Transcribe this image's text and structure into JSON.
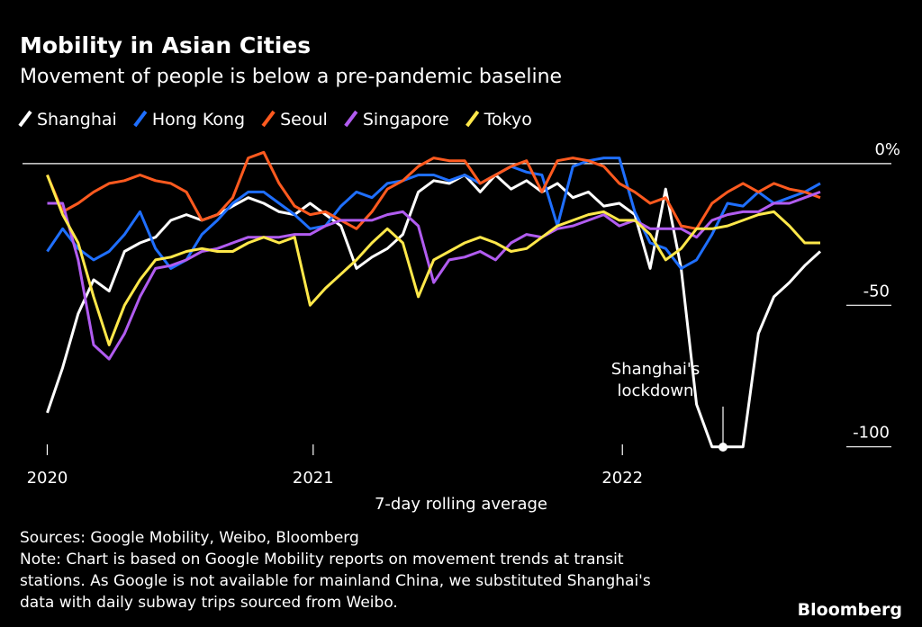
{
  "chart_data": {
    "type": "line",
    "title": "Mobility in Asian Cities",
    "subtitle": "Movement of people is below a pre-pandemic baseline",
    "x_label": "7-day rolling average",
    "annotation": [
      "Shanghai's",
      "lockdown"
    ],
    "source": "Sources: Google Mobility, Weibo, Bloomberg",
    "note": [
      "Note: Chart is based on Google Mobility reports on movement trends at transit",
      "stations. As Google is not available for mainland China, we substituted Shanghai's",
      "data with daily subway trips sourced from Weibo."
    ],
    "brand": "Bloomberg",
    "xlim": [
      2020.06,
      2022.87
    ],
    "xticks": [
      {
        "value": 2020.14,
        "label": "2020"
      },
      2021,
      2022
    ],
    "ylim": [
      -102,
      6
    ],
    "yticks": [
      {
        "value": 0,
        "label": "0%"
      },
      -50,
      -100
    ],
    "zero_line": true,
    "x": [
      2020.14,
      2020.19,
      2020.24,
      2020.29,
      2020.34,
      2020.39,
      2020.44,
      2020.49,
      2020.54,
      2020.59,
      2020.64,
      2020.69,
      2020.74,
      2020.79,
      2020.84,
      2020.89,
      2020.94,
      2020.99,
      2021.04,
      2021.09,
      2021.14,
      2021.19,
      2021.24,
      2021.29,
      2021.34,
      2021.39,
      2021.44,
      2021.49,
      2021.54,
      2021.59,
      2021.64,
      2021.69,
      2021.74,
      2021.79,
      2021.84,
      2021.89,
      2021.94,
      2021.99,
      2022.04,
      2022.09,
      2022.14,
      2022.19,
      2022.24,
      2022.29,
      2022.34,
      2022.39,
      2022.44,
      2022.49,
      2022.54,
      2022.59,
      2022.64
    ],
    "series": [
      {
        "name": "Shanghai",
        "color": "#ffffff",
        "values": [
          -88,
          -72,
          -53,
          -41,
          -45,
          -31,
          -28,
          -26,
          -20,
          -18,
          -20,
          -18,
          -15,
          -12,
          -14,
          -17,
          -18,
          -14,
          -18,
          -22,
          -37,
          -33,
          -30,
          -25,
          -10,
          -6,
          -7,
          -4,
          -10,
          -4,
          -9,
          -6,
          -10,
          -7,
          -12,
          -10,
          -15,
          -14,
          -18,
          -37,
          -9,
          -37,
          -85,
          -100,
          -100,
          -100,
          -60,
          -47,
          -42,
          -36,
          -31
        ]
      },
      {
        "name": "Hong Kong",
        "color": "#1f6fff",
        "values": [
          -31,
          -23,
          -30,
          -34,
          -31,
          -25,
          -17,
          -30,
          -37,
          -34,
          -25,
          -20,
          -14,
          -10,
          -10,
          -14,
          -18,
          -23,
          -22,
          -15,
          -10,
          -12,
          -7,
          -6,
          -4,
          -4,
          -6,
          -4,
          -7,
          -4,
          -1,
          -3,
          -4,
          -22,
          -1,
          1,
          2,
          2,
          -17,
          -28,
          -30,
          -37,
          -34,
          -25,
          -14,
          -15,
          -10,
          -14,
          -12,
          -10,
          -7
        ]
      },
      {
        "name": "Seoul",
        "color": "#ff5a1f",
        "values": [
          -4,
          -17,
          -14,
          -10,
          -7,
          -6,
          -4,
          -6,
          -7,
          -10,
          -20,
          -18,
          -12,
          2,
          4,
          -7,
          -15,
          -18,
          -17,
          -20,
          -23,
          -17,
          -9,
          -6,
          -1,
          2,
          1,
          1,
          -7,
          -4,
          -1,
          1,
          -10,
          1,
          2,
          1,
          -1,
          -7,
          -10,
          -14,
          -12,
          -22,
          -23,
          -14,
          -10,
          -7,
          -10,
          -7,
          -9,
          -10,
          -12
        ]
      },
      {
        "name": "Singapore",
        "color": "#b15cf0",
        "values": [
          -14,
          -14,
          -34,
          -64,
          -69,
          -60,
          -47,
          -37,
          -36,
          -34,
          -31,
          -30,
          -28,
          -26,
          -26,
          -26,
          -25,
          -25,
          -22,
          -20,
          -20,
          -20,
          -18,
          -17,
          -22,
          -42,
          -34,
          -33,
          -31,
          -34,
          -28,
          -25,
          -26,
          -23,
          -22,
          -20,
          -18,
          -22,
          -20,
          -23,
          -23,
          -23,
          -26,
          -20,
          -18,
          -17,
          -17,
          -14,
          -14,
          -12,
          -10
        ]
      },
      {
        "name": "Tokyo",
        "color": "#ffe84a",
        "values": [
          -4,
          -18,
          -28,
          -47,
          -64,
          -50,
          -41,
          -34,
          -33,
          -31,
          -30,
          -31,
          -31,
          -28,
          -26,
          -28,
          -26,
          -50,
          -44,
          -39,
          -34,
          -28,
          -23,
          -28,
          -47,
          -34,
          -31,
          -28,
          -26,
          -28,
          -31,
          -30,
          -26,
          -22,
          -20,
          -18,
          -17,
          -20,
          -20,
          -25,
          -34,
          -30,
          -23,
          -23,
          -22,
          -20,
          -18,
          -17,
          -22,
          -28,
          -28
        ]
      }
    ]
  }
}
